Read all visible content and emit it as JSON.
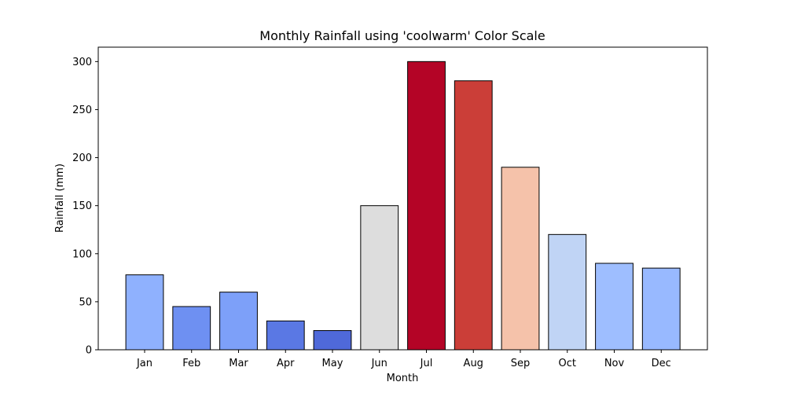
{
  "chart_data": {
    "type": "bar",
    "title": "Monthly Rainfall using 'coolwarm' Color Scale",
    "xlabel": "Month",
    "ylabel": "Rainfall (mm)",
    "categories": [
      "Jan",
      "Feb",
      "Mar",
      "Apr",
      "May",
      "Jun",
      "Jul",
      "Aug",
      "Sep",
      "Oct",
      "Nov",
      "Dec"
    ],
    "values": [
      78,
      45,
      60,
      30,
      20,
      150,
      300,
      280,
      190,
      120,
      90,
      85
    ],
    "colors": [
      "#8FB1FE",
      "#6E90F2",
      "#7DA0F9",
      "#5A78E4",
      "#4F69D9",
      "#DDDDDD",
      "#B40426",
      "#CB3E38",
      "#F5C2AA",
      "#C0D4F5",
      "#9EBEFF",
      "#98B9FF"
    ],
    "ylim": [
      0,
      315
    ],
    "yticks": [
      0,
      50,
      100,
      150,
      200,
      250,
      300
    ],
    "grid": false,
    "colormap": "coolwarm"
  }
}
